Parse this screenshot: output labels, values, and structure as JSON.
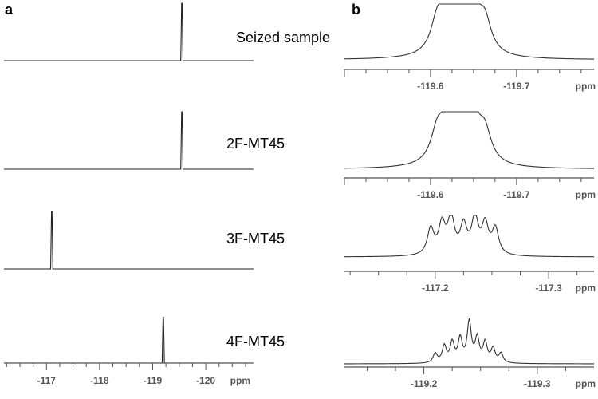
{
  "figure": {
    "panel_a": "a",
    "panel_b": "b",
    "samples": [
      "Seized sample",
      "2F-MT45",
      "3F-MT45",
      "4F-MT45"
    ]
  },
  "chart_data": [
    {
      "panel": "a",
      "type": "line",
      "description_source": "stacked 19F NMR spectra (single sharp peak each)",
      "xlabel": "ppm",
      "xlim": [
        -116.2,
        -120.9
      ],
      "ticks": [
        -117,
        -118,
        -119,
        -120
      ],
      "series": [
        {
          "name": "Seized sample",
          "peak_ppm": -119.55,
          "relative_height": 1.0
        },
        {
          "name": "2F-MT45",
          "peak_ppm": -119.55,
          "relative_height": 1.0
        },
        {
          "name": "3F-MT45",
          "peak_ppm": -117.1,
          "relative_height": 1.0
        },
        {
          "name": "4F-MT45",
          "peak_ppm": -119.2,
          "relative_height": 0.8
        }
      ]
    },
    {
      "panel": "b",
      "type": "line",
      "xlabel": "ppm",
      "series": [
        {
          "name": "Seized sample",
          "xlim": [
            -119.5,
            -119.79
          ],
          "ticks": [
            -119.6,
            -119.7
          ],
          "multiplet": [
            [
              -119.608,
              0.65
            ],
            [
              -119.622,
              0.98
            ],
            [
              -119.635,
              1.0
            ],
            [
              -119.648,
              0.98
            ],
            [
              -119.663,
              0.65
            ]
          ],
          "width": 0.009
        },
        {
          "name": "2F-MT45",
          "xlim": [
            -119.5,
            -119.79
          ],
          "ticks": [
            -119.6,
            -119.7
          ],
          "multiplet": [
            [
              -119.608,
              0.6
            ],
            [
              -119.622,
              0.95
            ],
            [
              -119.635,
              1.0
            ],
            [
              -119.648,
              0.95
            ],
            [
              -119.663,
              0.6
            ]
          ],
          "width": 0.009
        },
        {
          "name": "3F-MT45",
          "xlim": [
            -117.12,
            -117.34
          ],
          "ticks": [
            -117.2,
            -117.3
          ],
          "multiplet": [
            [
              -117.196,
              0.72
            ],
            [
              -117.206,
              0.82
            ],
            [
              -117.214,
              1.0
            ],
            [
              -117.225,
              0.78
            ],
            [
              -117.235,
              1.0
            ],
            [
              -117.244,
              0.82
            ],
            [
              -117.253,
              0.72
            ]
          ],
          "width": 0.0035
        },
        {
          "name": "4F-MT45",
          "xlim": [
            -119.13,
            -119.35
          ],
          "ticks": [
            -119.2,
            -119.3
          ],
          "multiplet": [
            [
              -119.21,
              0.2
            ],
            [
              -119.218,
              0.35
            ],
            [
              -119.225,
              0.42
            ],
            [
              -119.232,
              0.5
            ],
            [
              -119.24,
              0.85
            ],
            [
              -119.247,
              0.5
            ],
            [
              -119.254,
              0.42
            ],
            [
              -119.261,
              0.3
            ],
            [
              -119.268,
              0.2
            ]
          ],
          "width": 0.0022
        }
      ]
    }
  ]
}
